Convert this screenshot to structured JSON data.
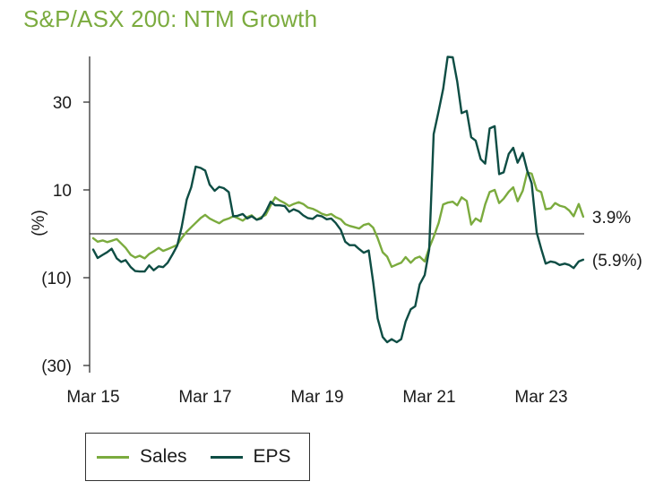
{
  "chart_data": {
    "type": "line",
    "title": "S&P/ASX 200: NTM Growth",
    "ylabel": "(%)",
    "xlabel": "",
    "ylim": [
      -30,
      40
    ],
    "x_range": [
      2015.0,
      2024.2
    ],
    "y_ticks": [
      {
        "value": 30,
        "label": "30"
      },
      {
        "value": 10,
        "label": "10"
      },
      {
        "value": -10,
        "label": "(10)"
      },
      {
        "value": -30,
        "label": "(30)"
      }
    ],
    "x_ticks": [
      {
        "value": 2015.0,
        "label": "Mar 15"
      },
      {
        "value": 2017.0,
        "label": "Mar 17"
      },
      {
        "value": 2019.0,
        "label": "Mar 19"
      },
      {
        "value": 2021.0,
        "label": "Mar 21"
      },
      {
        "value": 2023.0,
        "label": "Mar 23"
      }
    ],
    "zero_line": true,
    "legend_position": "bottom-left",
    "series": [
      {
        "name": "Sales",
        "color": "#7bab3e",
        "end_label": "3.9%",
        "points": [
          [
            2015.0,
            -1.0
          ],
          [
            2015.08,
            -1.8
          ],
          [
            2015.17,
            -1.5
          ],
          [
            2015.25,
            -1.9
          ],
          [
            2015.33,
            -1.6
          ],
          [
            2015.42,
            -1.2
          ],
          [
            2015.5,
            -2.2
          ],
          [
            2015.58,
            -3.2
          ],
          [
            2015.67,
            -4.8
          ],
          [
            2015.75,
            -5.4
          ],
          [
            2015.83,
            -5.0
          ],
          [
            2015.92,
            -5.6
          ],
          [
            2016.0,
            -4.6
          ],
          [
            2016.08,
            -4.0
          ],
          [
            2016.17,
            -3.2
          ],
          [
            2016.25,
            -3.9
          ],
          [
            2016.33,
            -3.5
          ],
          [
            2016.42,
            -3.0
          ],
          [
            2016.5,
            -2.5
          ],
          [
            2016.58,
            -1.0
          ],
          [
            2016.67,
            0.5
          ],
          [
            2016.75,
            1.5
          ],
          [
            2016.83,
            2.5
          ],
          [
            2016.92,
            3.6
          ],
          [
            2017.0,
            4.3
          ],
          [
            2017.08,
            3.5
          ],
          [
            2017.17,
            2.9
          ],
          [
            2017.25,
            2.4
          ],
          [
            2017.33,
            3.1
          ],
          [
            2017.42,
            3.5
          ],
          [
            2017.5,
            4.0
          ],
          [
            2017.58,
            3.6
          ],
          [
            2017.67,
            3.0
          ],
          [
            2017.75,
            3.8
          ],
          [
            2017.83,
            4.2
          ],
          [
            2017.92,
            3.2
          ],
          [
            2018.0,
            3.8
          ],
          [
            2018.08,
            4.3
          ],
          [
            2018.17,
            6.5
          ],
          [
            2018.25,
            8.3
          ],
          [
            2018.33,
            7.6
          ],
          [
            2018.42,
            7.0
          ],
          [
            2018.5,
            6.3
          ],
          [
            2018.58,
            6.8
          ],
          [
            2018.67,
            7.2
          ],
          [
            2018.75,
            6.8
          ],
          [
            2018.83,
            6.0
          ],
          [
            2018.92,
            5.7
          ],
          [
            2019.0,
            5.2
          ],
          [
            2019.08,
            4.6
          ],
          [
            2019.17,
            4.2
          ],
          [
            2019.25,
            4.5
          ],
          [
            2019.33,
            3.8
          ],
          [
            2019.42,
            3.3
          ],
          [
            2019.5,
            2.2
          ],
          [
            2019.58,
            1.8
          ],
          [
            2019.67,
            1.5
          ],
          [
            2019.75,
            1.2
          ],
          [
            2019.83,
            2.0
          ],
          [
            2019.92,
            2.3
          ],
          [
            2020.0,
            1.4
          ],
          [
            2020.08,
            -1.0
          ],
          [
            2020.17,
            -4.2
          ],
          [
            2020.25,
            -5.2
          ],
          [
            2020.33,
            -7.5
          ],
          [
            2020.42,
            -7.0
          ],
          [
            2020.5,
            -6.6
          ],
          [
            2020.58,
            -5.3
          ],
          [
            2020.67,
            -6.6
          ],
          [
            2020.75,
            -5.6
          ],
          [
            2020.83,
            -5.2
          ],
          [
            2020.92,
            -6.3
          ],
          [
            2021.0,
            -3.2
          ],
          [
            2021.08,
            -0.7
          ],
          [
            2021.17,
            2.5
          ],
          [
            2021.25,
            6.7
          ],
          [
            2021.33,
            7.1
          ],
          [
            2021.42,
            7.3
          ],
          [
            2021.5,
            6.5
          ],
          [
            2021.58,
            8.3
          ],
          [
            2021.67,
            7.5
          ],
          [
            2021.75,
            2.1
          ],
          [
            2021.83,
            3.5
          ],
          [
            2021.92,
            2.8
          ],
          [
            2022.0,
            6.7
          ],
          [
            2022.08,
            9.5
          ],
          [
            2022.17,
            10.0
          ],
          [
            2022.25,
            7.0
          ],
          [
            2022.33,
            8.0
          ],
          [
            2022.42,
            9.6
          ],
          [
            2022.5,
            10.6
          ],
          [
            2022.58,
            7.4
          ],
          [
            2022.67,
            9.8
          ],
          [
            2022.75,
            14.0
          ],
          [
            2022.83,
            13.7
          ],
          [
            2022.92,
            10.0
          ],
          [
            2023.0,
            9.5
          ],
          [
            2023.08,
            5.6
          ],
          [
            2023.17,
            5.8
          ],
          [
            2023.25,
            7.0
          ],
          [
            2023.33,
            6.4
          ],
          [
            2023.42,
            6.1
          ],
          [
            2023.5,
            5.3
          ],
          [
            2023.58,
            4.0
          ],
          [
            2023.67,
            6.8
          ],
          [
            2023.75,
            3.9
          ]
        ]
      },
      {
        "name": "EPS",
        "color": "#0e4d44",
        "end_label": "(5.9%)",
        "points": [
          [
            2015.0,
            -3.6
          ],
          [
            2015.08,
            -5.5
          ],
          [
            2015.17,
            -4.8
          ],
          [
            2015.25,
            -4.2
          ],
          [
            2015.33,
            -3.4
          ],
          [
            2015.42,
            -5.6
          ],
          [
            2015.5,
            -6.4
          ],
          [
            2015.58,
            -6.0
          ],
          [
            2015.67,
            -7.6
          ],
          [
            2015.75,
            -8.5
          ],
          [
            2015.83,
            -8.6
          ],
          [
            2015.92,
            -8.6
          ],
          [
            2016.0,
            -7.2
          ],
          [
            2016.08,
            -8.3
          ],
          [
            2016.17,
            -7.4
          ],
          [
            2016.25,
            -7.6
          ],
          [
            2016.33,
            -6.6
          ],
          [
            2016.42,
            -4.6
          ],
          [
            2016.5,
            -2.7
          ],
          [
            2016.58,
            1.5
          ],
          [
            2016.67,
            7.8
          ],
          [
            2016.75,
            10.6
          ],
          [
            2016.83,
            15.3
          ],
          [
            2016.92,
            15.0
          ],
          [
            2017.0,
            14.4
          ],
          [
            2017.08,
            11.2
          ],
          [
            2017.17,
            9.8
          ],
          [
            2017.25,
            10.7
          ],
          [
            2017.33,
            10.4
          ],
          [
            2017.42,
            9.5
          ],
          [
            2017.5,
            4.0
          ],
          [
            2017.58,
            4.1
          ],
          [
            2017.67,
            4.5
          ],
          [
            2017.75,
            3.5
          ],
          [
            2017.83,
            4.0
          ],
          [
            2017.92,
            3.2
          ],
          [
            2018.0,
            3.5
          ],
          [
            2018.08,
            5.0
          ],
          [
            2018.17,
            7.3
          ],
          [
            2018.25,
            6.5
          ],
          [
            2018.33,
            6.5
          ],
          [
            2018.42,
            6.3
          ],
          [
            2018.5,
            5.0
          ],
          [
            2018.58,
            5.6
          ],
          [
            2018.67,
            5.1
          ],
          [
            2018.75,
            4.2
          ],
          [
            2018.83,
            3.6
          ],
          [
            2018.92,
            3.4
          ],
          [
            2019.0,
            4.2
          ],
          [
            2019.08,
            4.0
          ],
          [
            2019.17,
            3.3
          ],
          [
            2019.25,
            3.5
          ],
          [
            2019.33,
            2.5
          ],
          [
            2019.42,
            0.9
          ],
          [
            2019.5,
            -1.8
          ],
          [
            2019.58,
            -2.6
          ],
          [
            2019.67,
            -2.6
          ],
          [
            2019.75,
            -3.5
          ],
          [
            2019.83,
            -4.3
          ],
          [
            2019.92,
            -3.8
          ],
          [
            2020.0,
            -11.0
          ],
          [
            2020.08,
            -19.3
          ],
          [
            2020.17,
            -23.5
          ],
          [
            2020.25,
            -24.7
          ],
          [
            2020.33,
            -24.0
          ],
          [
            2020.42,
            -24.7
          ],
          [
            2020.5,
            -24.0
          ],
          [
            2020.58,
            -20.0
          ],
          [
            2020.67,
            -17.2
          ],
          [
            2020.75,
            -16.5
          ],
          [
            2020.83,
            -11.5
          ],
          [
            2020.92,
            -9.4
          ],
          [
            2021.0,
            -3.6
          ],
          [
            2021.08,
            22.7
          ],
          [
            2021.17,
            28.0
          ],
          [
            2021.25,
            33.0
          ],
          [
            2021.33,
            40.3
          ],
          [
            2021.42,
            40.2
          ],
          [
            2021.5,
            34.7
          ],
          [
            2021.58,
            27.5
          ],
          [
            2021.67,
            28.0
          ],
          [
            2021.75,
            22.0
          ],
          [
            2021.83,
            21.2
          ],
          [
            2021.92,
            17.0
          ],
          [
            2022.0,
            16.0
          ],
          [
            2022.08,
            24.0
          ],
          [
            2022.17,
            24.5
          ],
          [
            2022.25,
            13.6
          ],
          [
            2022.33,
            14.0
          ],
          [
            2022.42,
            18.2
          ],
          [
            2022.5,
            19.6
          ],
          [
            2022.58,
            16.2
          ],
          [
            2022.67,
            18.4
          ],
          [
            2022.75,
            14.4
          ],
          [
            2022.83,
            11.5
          ],
          [
            2022.92,
            0.3
          ],
          [
            2023.0,
            -3.4
          ],
          [
            2023.08,
            -6.8
          ],
          [
            2023.17,
            -6.3
          ],
          [
            2023.25,
            -6.5
          ],
          [
            2023.33,
            -7.1
          ],
          [
            2023.42,
            -6.8
          ],
          [
            2023.5,
            -7.1
          ],
          [
            2023.58,
            -7.8
          ],
          [
            2023.67,
            -6.3
          ],
          [
            2023.75,
            -5.9
          ]
        ]
      }
    ]
  }
}
